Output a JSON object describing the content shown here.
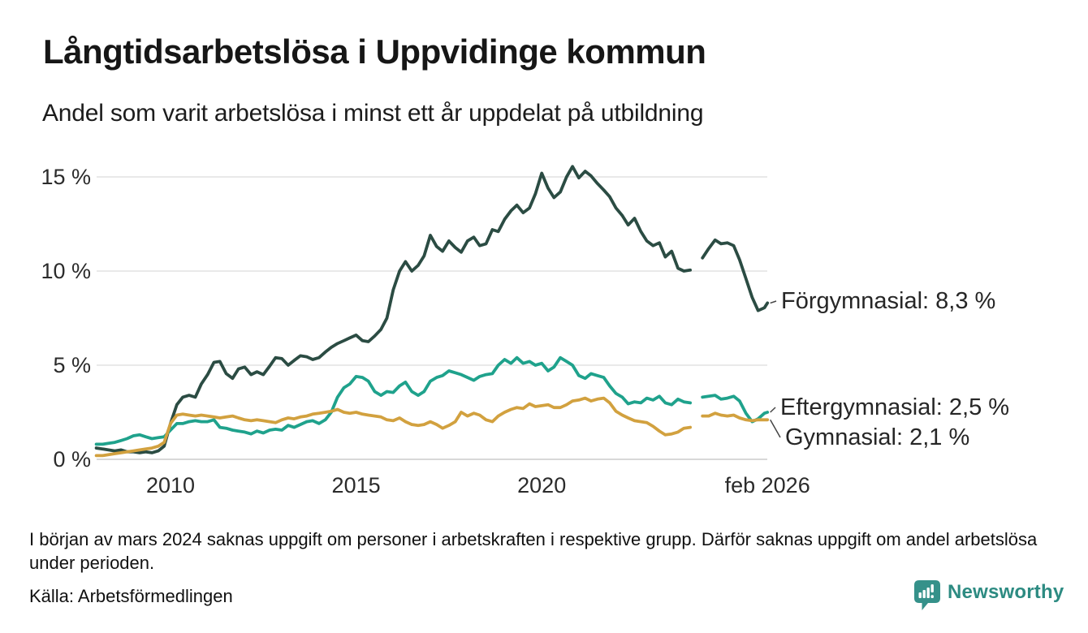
{
  "chart_data": {
    "type": "line",
    "title": "Långtidsarbetslösa i Uppvidinge kommun",
    "subtitle": "Andel som varit arbetslösa i minst ett år uppdelat på utbildning",
    "unit": "%",
    "grid": "horizontal",
    "ylim": [
      0,
      15.8
    ],
    "xlim": [
      2008,
      2026.08
    ],
    "yticks": [
      {
        "value": 0,
        "label": "0 %"
      },
      {
        "value": 5,
        "label": "5 %"
      },
      {
        "value": 10,
        "label": "10 %"
      },
      {
        "value": 15,
        "label": "15 %"
      }
    ],
    "xticks": [
      {
        "year": 2010,
        "label": "2010"
      },
      {
        "year": 2015,
        "label": "2015"
      },
      {
        "year": 2020,
        "label": "2020"
      },
      {
        "year": 2026.08,
        "label": "feb 2026"
      }
    ],
    "x": [
      2008.0,
      2008.17,
      2008.33,
      2008.5,
      2008.67,
      2008.83,
      2009.0,
      2009.17,
      2009.33,
      2009.5,
      2009.67,
      2009.83,
      2010.0,
      2010.17,
      2010.33,
      2010.5,
      2010.67,
      2010.83,
      2011.0,
      2011.17,
      2011.33,
      2011.5,
      2011.67,
      2011.83,
      2012.0,
      2012.17,
      2012.33,
      2012.5,
      2012.67,
      2012.83,
      2013.0,
      2013.17,
      2013.33,
      2013.5,
      2013.67,
      2013.83,
      2014.0,
      2014.17,
      2014.33,
      2014.5,
      2014.67,
      2014.83,
      2015.0,
      2015.17,
      2015.33,
      2015.5,
      2015.67,
      2015.83,
      2016.0,
      2016.17,
      2016.33,
      2016.5,
      2016.67,
      2016.83,
      2017.0,
      2017.17,
      2017.33,
      2017.5,
      2017.67,
      2017.83,
      2018.0,
      2018.17,
      2018.33,
      2018.5,
      2018.67,
      2018.83,
      2019.0,
      2019.17,
      2019.33,
      2019.5,
      2019.67,
      2019.83,
      2020.0,
      2020.17,
      2020.33,
      2020.5,
      2020.67,
      2020.83,
      2021.0,
      2021.17,
      2021.33,
      2021.5,
      2021.67,
      2021.83,
      2022.0,
      2022.17,
      2022.33,
      2022.5,
      2022.67,
      2022.83,
      2023.0,
      2023.17,
      2023.33,
      2023.5,
      2023.67,
      2023.83,
      2024.0,
      2024.17,
      2024.33,
      2024.5,
      2024.67,
      2024.83,
      2025.0,
      2025.17,
      2025.33,
      2025.5,
      2025.67,
      2025.83,
      2026.0,
      2026.08
    ],
    "series": [
      {
        "name": "Förgymnasial",
        "color": "#2b4c43",
        "end_label": "Förgymnasial: 8,3 %",
        "end_value": 8.3,
        "values": [
          0.6,
          0.55,
          0.5,
          0.45,
          0.5,
          0.4,
          0.4,
          0.35,
          0.4,
          0.35,
          0.45,
          0.7,
          1.9,
          2.9,
          3.3,
          3.4,
          3.3,
          4.0,
          4.5,
          5.15,
          5.2,
          4.55,
          4.3,
          4.8,
          4.9,
          4.5,
          4.65,
          4.5,
          4.95,
          5.4,
          5.35,
          5.0,
          5.25,
          5.5,
          5.45,
          5.3,
          5.4,
          5.7,
          5.95,
          6.15,
          6.3,
          6.45,
          6.6,
          6.3,
          6.25,
          6.55,
          6.9,
          7.5,
          9.0,
          10.0,
          10.5,
          10.0,
          10.3,
          10.8,
          11.9,
          11.3,
          11.05,
          11.6,
          11.25,
          11.0,
          11.6,
          11.8,
          11.35,
          11.45,
          12.2,
          12.1,
          12.75,
          13.2,
          13.5,
          13.1,
          13.35,
          14.1,
          15.2,
          14.4,
          13.9,
          14.2,
          15.0,
          15.55,
          14.95,
          15.3,
          15.05,
          14.65,
          14.3,
          13.95,
          13.35,
          12.95,
          12.45,
          12.8,
          12.1,
          11.6,
          11.35,
          11.5,
          10.75,
          11.05,
          10.15,
          10.0,
          10.05,
          null,
          10.7,
          11.2,
          11.65,
          11.45,
          11.5,
          11.35,
          10.6,
          9.6,
          8.6,
          7.9,
          8.05,
          8.3
        ]
      },
      {
        "name": "Eftergymnasial",
        "color": "#1fa28c",
        "end_label": "Eftergymnasial: 2,5 %",
        "end_value": 2.5,
        "values": [
          0.8,
          0.8,
          0.85,
          0.9,
          1.0,
          1.1,
          1.25,
          1.3,
          1.2,
          1.1,
          1.15,
          1.2,
          1.55,
          1.9,
          1.9,
          2.0,
          2.05,
          2.0,
          2.0,
          2.1,
          1.7,
          1.65,
          1.55,
          1.5,
          1.45,
          1.35,
          1.5,
          1.4,
          1.55,
          1.6,
          1.55,
          1.8,
          1.7,
          1.85,
          2.0,
          2.05,
          1.9,
          2.1,
          2.5,
          3.3,
          3.8,
          4.0,
          4.4,
          4.35,
          4.15,
          3.6,
          3.4,
          3.6,
          3.55,
          3.9,
          4.1,
          3.6,
          3.4,
          3.6,
          4.15,
          4.35,
          4.45,
          4.7,
          4.6,
          4.5,
          4.35,
          4.2,
          4.4,
          4.5,
          4.55,
          5.0,
          5.3,
          5.1,
          5.4,
          5.1,
          5.2,
          5.0,
          5.1,
          4.7,
          4.9,
          5.4,
          5.2,
          5.0,
          4.45,
          4.3,
          4.55,
          4.45,
          4.35,
          3.9,
          3.5,
          3.3,
          2.95,
          3.05,
          3.0,
          3.25,
          3.15,
          3.35,
          3.0,
          2.9,
          3.2,
          3.05,
          3.0,
          null,
          3.3,
          3.35,
          3.4,
          3.2,
          3.25,
          3.35,
          3.1,
          2.45,
          2.0,
          2.15,
          2.45,
          2.5
        ]
      },
      {
        "name": "Gymnasial",
        "color": "#d2a13f",
        "end_label": "Gymnasial: 2,1 %",
        "end_value": 2.1,
        "values": [
          0.2,
          0.2,
          0.25,
          0.3,
          0.35,
          0.4,
          0.45,
          0.5,
          0.55,
          0.6,
          0.7,
          0.9,
          1.9,
          2.35,
          2.4,
          2.35,
          2.3,
          2.35,
          2.3,
          2.25,
          2.2,
          2.25,
          2.3,
          2.2,
          2.1,
          2.05,
          2.1,
          2.05,
          2.0,
          1.95,
          2.1,
          2.2,
          2.15,
          2.25,
          2.3,
          2.4,
          2.45,
          2.5,
          2.55,
          2.65,
          2.5,
          2.45,
          2.5,
          2.4,
          2.35,
          2.3,
          2.25,
          2.1,
          2.05,
          2.2,
          2.0,
          1.85,
          1.8,
          1.85,
          2.0,
          1.85,
          1.65,
          1.8,
          2.0,
          2.5,
          2.3,
          2.45,
          2.35,
          2.1,
          2.0,
          2.3,
          2.5,
          2.65,
          2.75,
          2.7,
          2.95,
          2.8,
          2.85,
          2.9,
          2.75,
          2.75,
          2.9,
          3.1,
          3.15,
          3.25,
          3.1,
          3.2,
          3.25,
          3.0,
          2.55,
          2.35,
          2.2,
          2.05,
          2.0,
          1.95,
          1.75,
          1.5,
          1.3,
          1.35,
          1.45,
          1.65,
          1.7,
          null,
          2.3,
          2.3,
          2.45,
          2.35,
          2.3,
          2.35,
          2.2,
          2.1,
          2.05,
          2.1,
          2.1,
          2.1
        ]
      }
    ]
  },
  "footer": {
    "note": "I början av mars 2024 saknas uppgift om personer i arbetskraften i respektive grupp. Därför saknas uppgift om andel arbetslösa under perioden.",
    "source": "Källa: Arbetsförmedlingen",
    "brand": "Newsworthy",
    "brand_color": "#2d8b82"
  }
}
